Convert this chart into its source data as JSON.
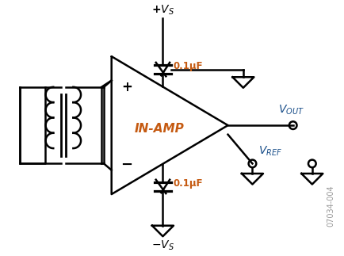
{
  "figure_label": "07034-004",
  "background_color": "#ffffff",
  "line_color": "#000000",
  "text_color_blue": "#1a4f8a",
  "text_color_orange": "#c55a11",
  "in_amp_label": "IN-AMP",
  "plus_label": "+",
  "minus_label": "−",
  "cap_label": "0.1μF"
}
